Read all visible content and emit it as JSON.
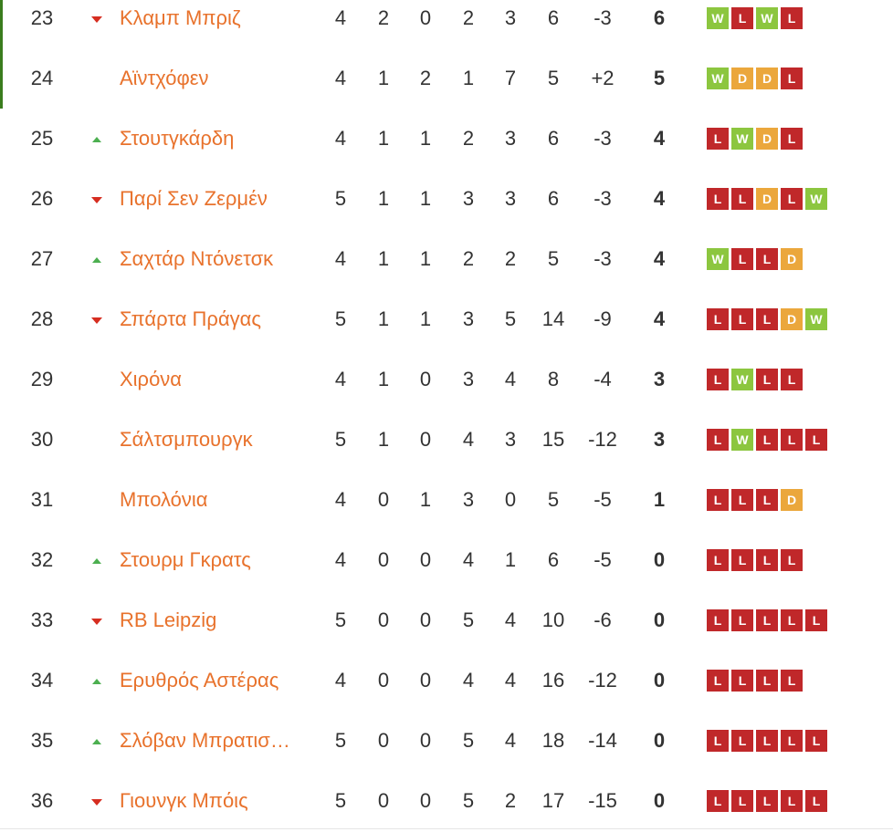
{
  "colors": {
    "team_link": "#e8722c",
    "win": "#8cc63f",
    "loss": "#c0282a",
    "draw": "#eba73c",
    "trend_up": "#4caf50",
    "trend_down": "#d62d20",
    "zone": "#3a7d1e"
  },
  "rows": [
    {
      "rank": "23",
      "trend": "down",
      "team": "Κλαμπ Μπριζ",
      "played": "4",
      "won": "2",
      "drawn": "0",
      "lost": "2",
      "gf": "3",
      "ga": "6",
      "gd": "-3",
      "pts": "6",
      "form": [
        "W",
        "L",
        "W",
        "L"
      ]
    },
    {
      "rank": "24",
      "trend": "none",
      "team": "Αϊντχόφεν",
      "played": "4",
      "won": "1",
      "drawn": "2",
      "lost": "1",
      "gf": "7",
      "ga": "5",
      "gd": "+2",
      "pts": "5",
      "form": [
        "W",
        "D",
        "D",
        "L"
      ]
    },
    {
      "rank": "25",
      "trend": "up",
      "team": "Στουτγκάρδη",
      "played": "4",
      "won": "1",
      "drawn": "1",
      "lost": "2",
      "gf": "3",
      "ga": "6",
      "gd": "-3",
      "pts": "4",
      "form": [
        "L",
        "W",
        "D",
        "L"
      ]
    },
    {
      "rank": "26",
      "trend": "down",
      "team": "Παρί Σεν Ζερμέν",
      "played": "5",
      "won": "1",
      "drawn": "1",
      "lost": "3",
      "gf": "3",
      "ga": "6",
      "gd": "-3",
      "pts": "4",
      "form": [
        "L",
        "L",
        "D",
        "L",
        "W"
      ]
    },
    {
      "rank": "27",
      "trend": "up",
      "team": "Σαχτάρ Ντόνετσκ",
      "played": "4",
      "won": "1",
      "drawn": "1",
      "lost": "2",
      "gf": "2",
      "ga": "5",
      "gd": "-3",
      "pts": "4",
      "form": [
        "W",
        "L",
        "L",
        "D"
      ]
    },
    {
      "rank": "28",
      "trend": "down",
      "team": "Σπάρτα Πράγας",
      "played": "5",
      "won": "1",
      "drawn": "1",
      "lost": "3",
      "gf": "5",
      "ga": "14",
      "gd": "-9",
      "pts": "4",
      "form": [
        "L",
        "L",
        "L",
        "D",
        "W"
      ]
    },
    {
      "rank": "29",
      "trend": "none",
      "team": "Χιρόνα",
      "played": "4",
      "won": "1",
      "drawn": "0",
      "lost": "3",
      "gf": "4",
      "ga": "8",
      "gd": "-4",
      "pts": "3",
      "form": [
        "L",
        "W",
        "L",
        "L"
      ]
    },
    {
      "rank": "30",
      "trend": "none",
      "team": "Σάλτσμπουργκ",
      "played": "5",
      "won": "1",
      "drawn": "0",
      "lost": "4",
      "gf": "3",
      "ga": "15",
      "gd": "-12",
      "pts": "3",
      "form": [
        "L",
        "W",
        "L",
        "L",
        "L"
      ]
    },
    {
      "rank": "31",
      "trend": "none",
      "team": "Μπολόνια",
      "played": "4",
      "won": "0",
      "drawn": "1",
      "lost": "3",
      "gf": "0",
      "ga": "5",
      "gd": "-5",
      "pts": "1",
      "form": [
        "L",
        "L",
        "L",
        "D"
      ]
    },
    {
      "rank": "32",
      "trend": "up",
      "team": "Στουρμ Γκρατς",
      "played": "4",
      "won": "0",
      "drawn": "0",
      "lost": "4",
      "gf": "1",
      "ga": "6",
      "gd": "-5",
      "pts": "0",
      "form": [
        "L",
        "L",
        "L",
        "L"
      ]
    },
    {
      "rank": "33",
      "trend": "down",
      "team": "RB Leipzig",
      "played": "5",
      "won": "0",
      "drawn": "0",
      "lost": "5",
      "gf": "4",
      "ga": "10",
      "gd": "-6",
      "pts": "0",
      "form": [
        "L",
        "L",
        "L",
        "L",
        "L"
      ]
    },
    {
      "rank": "34",
      "trend": "up",
      "team": "Ερυθρός Αστέρας",
      "played": "4",
      "won": "0",
      "drawn": "0",
      "lost": "4",
      "gf": "4",
      "ga": "16",
      "gd": "-12",
      "pts": "0",
      "form": [
        "L",
        "L",
        "L",
        "L"
      ]
    },
    {
      "rank": "35",
      "trend": "up",
      "team": "Σλόβαν Μπρατισ…",
      "played": "5",
      "won": "0",
      "drawn": "0",
      "lost": "5",
      "gf": "4",
      "ga": "18",
      "gd": "-14",
      "pts": "0",
      "form": [
        "L",
        "L",
        "L",
        "L",
        "L"
      ]
    },
    {
      "rank": "36",
      "trend": "down",
      "team": "Γιουνγκ Μπόις",
      "played": "5",
      "won": "0",
      "drawn": "0",
      "lost": "5",
      "gf": "2",
      "ga": "17",
      "gd": "-15",
      "pts": "0",
      "form": [
        "L",
        "L",
        "L",
        "L",
        "L"
      ]
    }
  ]
}
